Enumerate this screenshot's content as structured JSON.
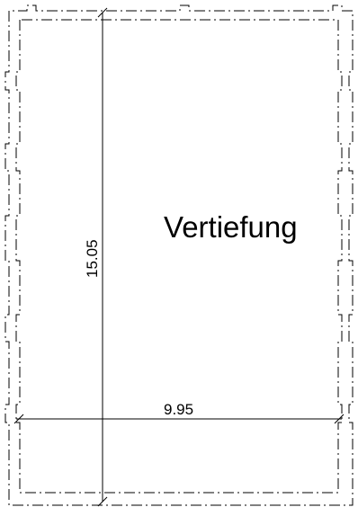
{
  "room": {
    "name": "Vertiefung"
  },
  "dimensions": {
    "height_label": "15.05",
    "width_label": "9.95"
  },
  "colors": {
    "line": "#000000",
    "background": "#ffffff"
  }
}
